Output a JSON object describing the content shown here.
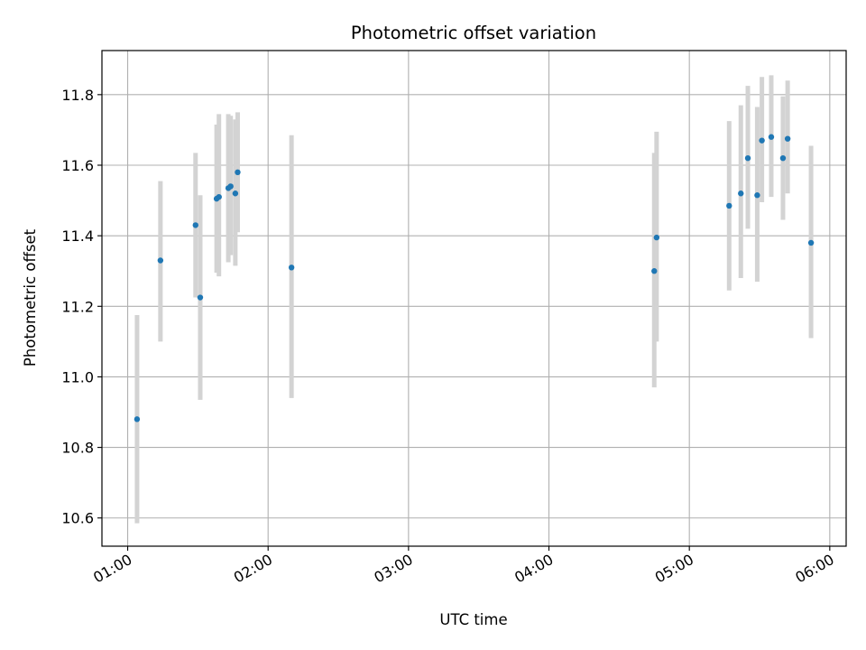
{
  "chart_data": {
    "type": "scatter",
    "title": "Photometric offset variation",
    "xlabel": "UTC time",
    "ylabel": "Photometric offset",
    "x_tick_labels": [
      "01:00",
      "02:00",
      "03:00",
      "04:00",
      "05:00",
      "06:00"
    ],
    "x_tick_values": [
      "01:00",
      "02:00",
      "03:00",
      "04:00",
      "05:00",
      "06:00"
    ],
    "y_ticks": [
      10.6,
      10.8,
      11.0,
      11.2,
      11.4,
      11.6,
      11.8
    ],
    "xlim": [
      "00:49",
      "06:07"
    ],
    "ylim": [
      10.52,
      11.925
    ],
    "grid": true,
    "error_bars": true,
    "colors": {
      "point": "#1f77b4",
      "error_bar": "#d3d3d3",
      "grid": "#b0b0b0",
      "axes": "#000000"
    },
    "points": [
      {
        "x": "01:04",
        "y": 10.88,
        "yerr_low": 10.585,
        "yerr_high": 11.175
      },
      {
        "x": "01:14",
        "y": 11.33,
        "yerr_low": 11.1,
        "yerr_high": 11.555
      },
      {
        "x": "01:29",
        "y": 11.43,
        "yerr_low": 11.225,
        "yerr_high": 11.635
      },
      {
        "x": "01:31",
        "y": 11.225,
        "yerr_low": 10.935,
        "yerr_high": 11.515
      },
      {
        "x": "01:38",
        "y": 11.505,
        "yerr_low": 11.295,
        "yerr_high": 11.715
      },
      {
        "x": "01:39",
        "y": 11.51,
        "yerr_low": 11.285,
        "yerr_high": 11.745
      },
      {
        "x": "01:43",
        "y": 11.535,
        "yerr_low": 11.325,
        "yerr_high": 11.745
      },
      {
        "x": "01:44",
        "y": 11.54,
        "yerr_low": 11.345,
        "yerr_high": 11.74
      },
      {
        "x": "01:46",
        "y": 11.52,
        "yerr_low": 11.315,
        "yerr_high": 11.73
      },
      {
        "x": "01:47",
        "y": 11.58,
        "yerr_low": 11.41,
        "yerr_high": 11.75
      },
      {
        "x": "02:10",
        "y": 11.31,
        "yerr_low": 10.94,
        "yerr_high": 11.685
      },
      {
        "x": "04:45",
        "y": 11.3,
        "yerr_low": 10.97,
        "yerr_high": 11.635
      },
      {
        "x": "04:46",
        "y": 11.395,
        "yerr_low": 11.1,
        "yerr_high": 11.695
      },
      {
        "x": "05:17",
        "y": 11.485,
        "yerr_low": 11.245,
        "yerr_high": 11.725
      },
      {
        "x": "05:22",
        "y": 11.52,
        "yerr_low": 11.28,
        "yerr_high": 11.77
      },
      {
        "x": "05:25",
        "y": 11.62,
        "yerr_low": 11.42,
        "yerr_high": 11.825
      },
      {
        "x": "05:29",
        "y": 11.515,
        "yerr_low": 11.27,
        "yerr_high": 11.765
      },
      {
        "x": "05:31",
        "y": 11.67,
        "yerr_low": 11.495,
        "yerr_high": 11.85
      },
      {
        "x": "05:35",
        "y": 11.68,
        "yerr_low": 11.51,
        "yerr_high": 11.855
      },
      {
        "x": "05:40",
        "y": 11.62,
        "yerr_low": 11.445,
        "yerr_high": 11.795
      },
      {
        "x": "05:42",
        "y": 11.675,
        "yerr_low": 11.52,
        "yerr_high": 11.84
      },
      {
        "x": "05:52",
        "y": 11.38,
        "yerr_low": 11.11,
        "yerr_high": 11.655
      }
    ]
  }
}
